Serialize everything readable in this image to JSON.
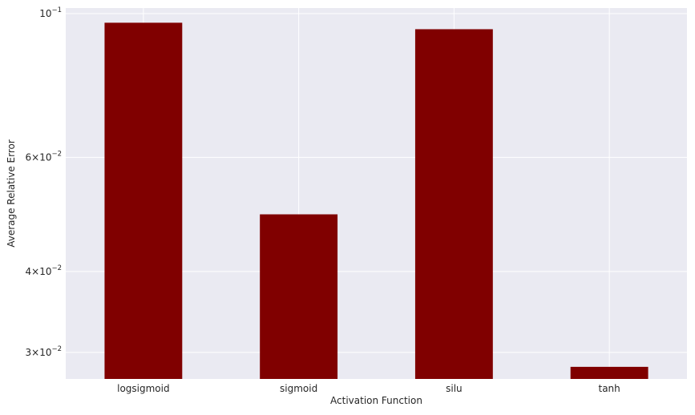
{
  "chart_data": {
    "type": "bar",
    "categories": [
      "logsigmoid",
      "sigmoid",
      "silu",
      "tanh"
    ],
    "values": [
      0.0968,
      0.049,
      0.0946,
      0.0285
    ],
    "xlabel": "Activation Function",
    "ylabel": "Average Relative Error",
    "y_scale": "log",
    "ylim": [
      0.0273,
      0.102
    ],
    "yticks": [
      {
        "value": 0.1,
        "mantissa": "",
        "base": "10",
        "exponent": "−1"
      },
      {
        "value": 0.06,
        "mantissa": "6",
        "base": "10",
        "exponent": "−2"
      },
      {
        "value": 0.04,
        "mantissa": "4",
        "base": "10",
        "exponent": "−2"
      },
      {
        "value": 0.03,
        "mantissa": "3",
        "base": "10",
        "exponent": "−2"
      }
    ],
    "bar_color": "#800000",
    "background_color": "#eaeaf2",
    "grid": true,
    "grid_color": "#ffffff"
  }
}
